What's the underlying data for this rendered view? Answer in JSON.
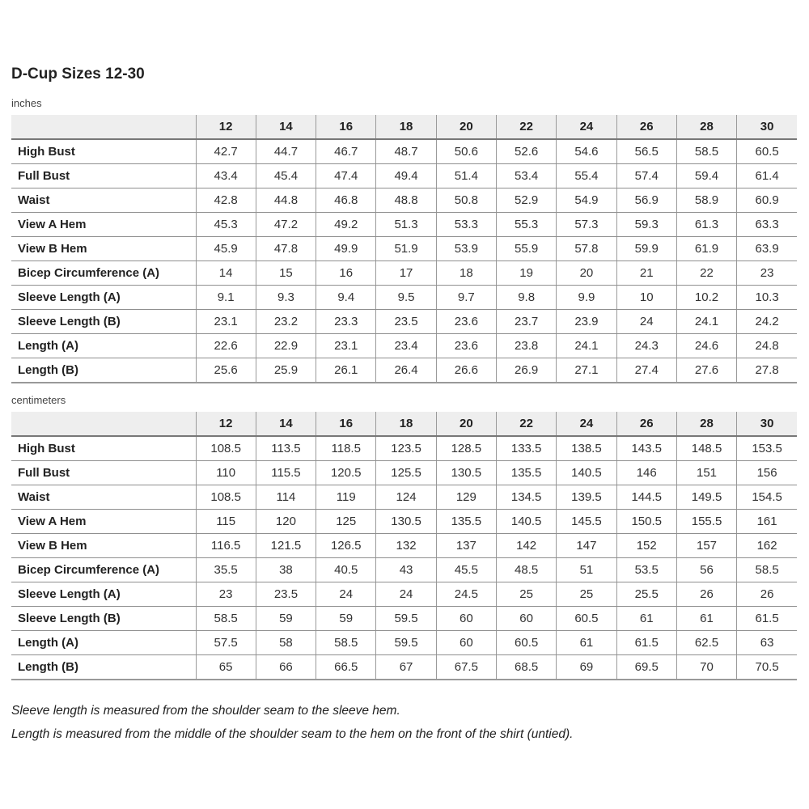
{
  "page": {
    "title": "D-Cup Sizes 12-30",
    "notes": [
      "Sleeve length is measured from the shoulder seam to the sleeve hem.",
      "Length is measured from the middle of the shoulder seam to the hem on the front of the shirt (untied)."
    ]
  },
  "tables": [
    {
      "unit_label": "inches",
      "columns": [
        "12",
        "14",
        "16",
        "18",
        "20",
        "22",
        "24",
        "26",
        "28",
        "30"
      ],
      "rows": [
        {
          "label": "High Bust",
          "values": [
            "42.7",
            "44.7",
            "46.7",
            "48.7",
            "50.6",
            "52.6",
            "54.6",
            "56.5",
            "58.5",
            "60.5"
          ]
        },
        {
          "label": "Full Bust",
          "values": [
            "43.4",
            "45.4",
            "47.4",
            "49.4",
            "51.4",
            "53.4",
            "55.4",
            "57.4",
            "59.4",
            "61.4"
          ]
        },
        {
          "label": "Waist",
          "values": [
            "42.8",
            "44.8",
            "46.8",
            "48.8",
            "50.8",
            "52.9",
            "54.9",
            "56.9",
            "58.9",
            "60.9"
          ]
        },
        {
          "label": "View A Hem",
          "values": [
            "45.3",
            "47.2",
            "49.2",
            "51.3",
            "53.3",
            "55.3",
            "57.3",
            "59.3",
            "61.3",
            "63.3"
          ]
        },
        {
          "label": "View B Hem",
          "values": [
            "45.9",
            "47.8",
            "49.9",
            "51.9",
            "53.9",
            "55.9",
            "57.8",
            "59.9",
            "61.9",
            "63.9"
          ]
        },
        {
          "label": "Bicep Circumference (A)",
          "values": [
            "14",
            "15",
            "16",
            "17",
            "18",
            "19",
            "20",
            "21",
            "22",
            "23"
          ]
        },
        {
          "label": "Sleeve Length (A)",
          "values": [
            "9.1",
            "9.3",
            "9.4",
            "9.5",
            "9.7",
            "9.8",
            "9.9",
            "10",
            "10.2",
            "10.3"
          ]
        },
        {
          "label": "Sleeve Length (B)",
          "values": [
            "23.1",
            "23.2",
            "23.3",
            "23.5",
            "23.6",
            "23.7",
            "23.9",
            "24",
            "24.1",
            "24.2"
          ]
        },
        {
          "label": "Length (A)",
          "values": [
            "22.6",
            "22.9",
            "23.1",
            "23.4",
            "23.6",
            "23.8",
            "24.1",
            "24.3",
            "24.6",
            "24.8"
          ]
        },
        {
          "label": "Length (B)",
          "values": [
            "25.6",
            "25.9",
            "26.1",
            "26.4",
            "26.6",
            "26.9",
            "27.1",
            "27.4",
            "27.6",
            "27.8"
          ]
        }
      ]
    },
    {
      "unit_label": "centimeters",
      "columns": [
        "12",
        "14",
        "16",
        "18",
        "20",
        "22",
        "24",
        "26",
        "28",
        "30"
      ],
      "rows": [
        {
          "label": "High Bust",
          "values": [
            "108.5",
            "113.5",
            "118.5",
            "123.5",
            "128.5",
            "133.5",
            "138.5",
            "143.5",
            "148.5",
            "153.5"
          ]
        },
        {
          "label": "Full Bust",
          "values": [
            "110",
            "115.5",
            "120.5",
            "125.5",
            "130.5",
            "135.5",
            "140.5",
            "146",
            "151",
            "156"
          ]
        },
        {
          "label": "Waist",
          "values": [
            "108.5",
            "114",
            "119",
            "124",
            "129",
            "134.5",
            "139.5",
            "144.5",
            "149.5",
            "154.5"
          ]
        },
        {
          "label": "View A Hem",
          "values": [
            "115",
            "120",
            "125",
            "130.5",
            "135.5",
            "140.5",
            "145.5",
            "150.5",
            "155.5",
            "161"
          ]
        },
        {
          "label": "View B Hem",
          "values": [
            "116.5",
            "121.5",
            "126.5",
            "132",
            "137",
            "142",
            "147",
            "152",
            "157",
            "162"
          ]
        },
        {
          "label": "Bicep Circumference (A)",
          "values": [
            "35.5",
            "38",
            "40.5",
            "43",
            "45.5",
            "48.5",
            "51",
            "53.5",
            "56",
            "58.5"
          ]
        },
        {
          "label": "Sleeve Length (A)",
          "values": [
            "23",
            "23.5",
            "24",
            "24",
            "24.5",
            "25",
            "25",
            "25.5",
            "26",
            "26"
          ]
        },
        {
          "label": "Sleeve Length (B)",
          "values": [
            "58.5",
            "59",
            "59",
            "59.5",
            "60",
            "60",
            "60.5",
            "61",
            "61",
            "61.5"
          ]
        },
        {
          "label": "Length (A)",
          "values": [
            "57.5",
            "58",
            "58.5",
            "59.5",
            "60",
            "60.5",
            "61",
            "61.5",
            "62.5",
            "63"
          ]
        },
        {
          "label": "Length (B)",
          "values": [
            "65",
            "66",
            "66.5",
            "67",
            "67.5",
            "68.5",
            "69",
            "69.5",
            "70",
            "70.5"
          ]
        }
      ]
    }
  ]
}
